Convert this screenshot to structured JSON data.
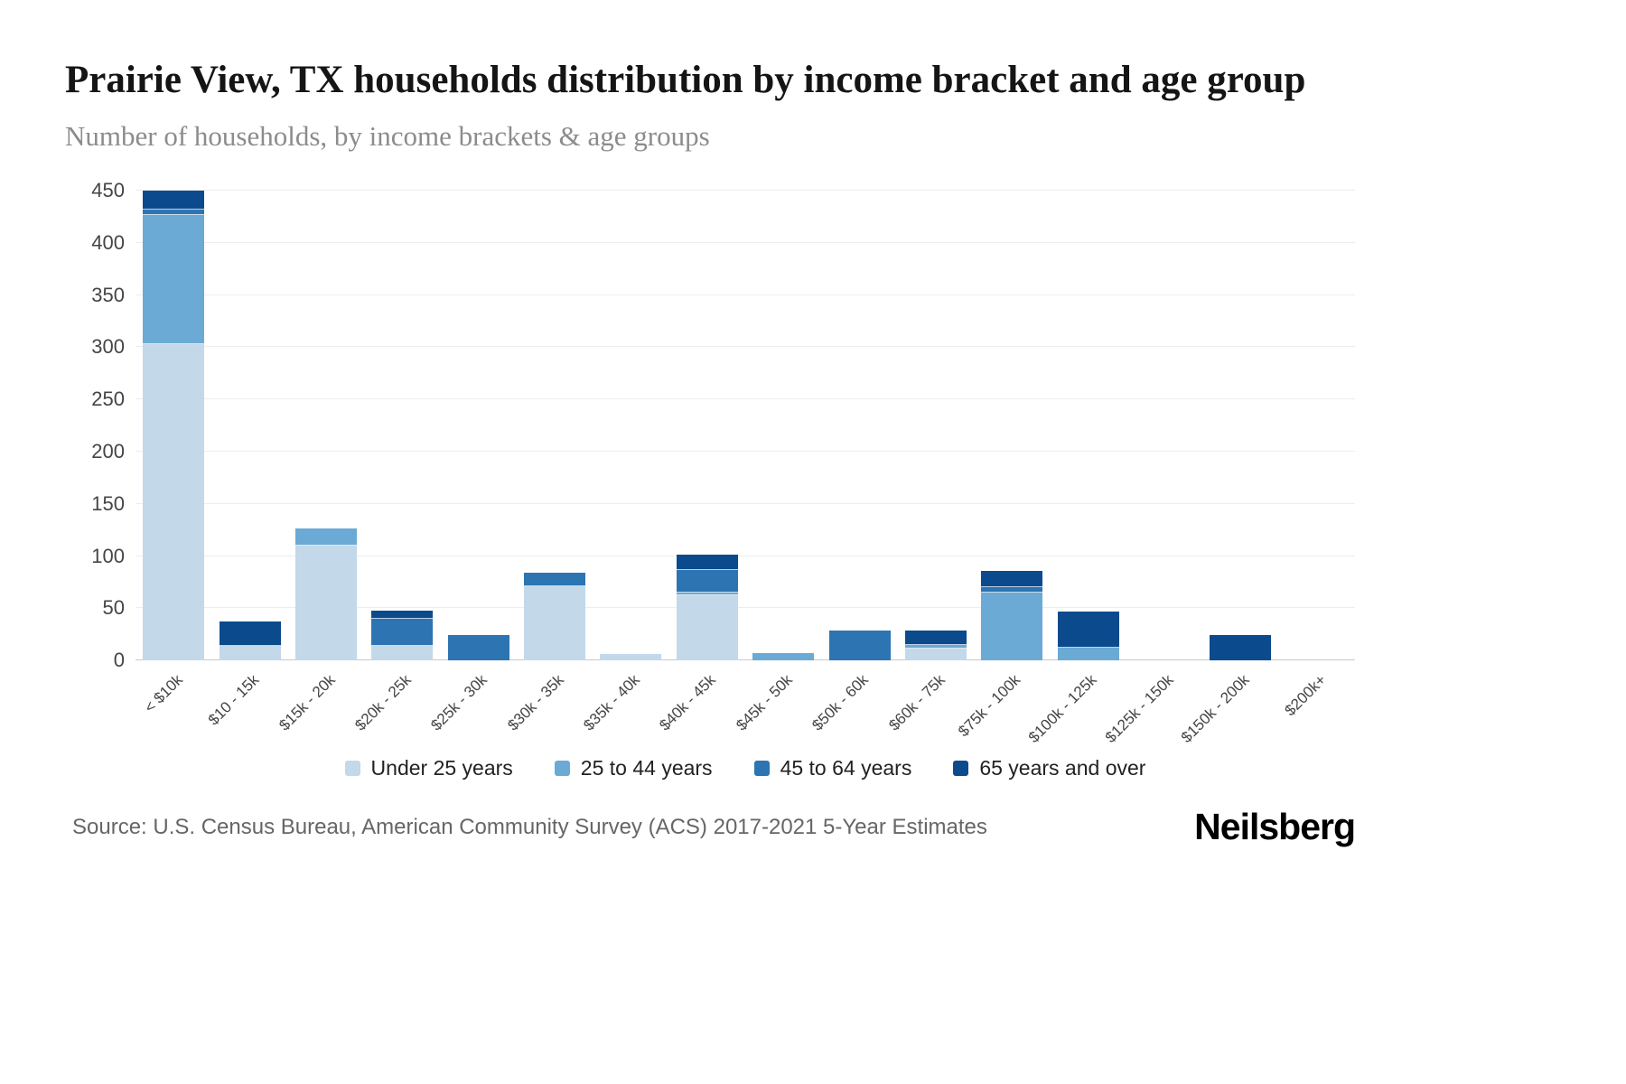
{
  "footer": {
    "source": "Source: U.S. Census Bureau, American Community Survey (ACS) 2017-2021 5-Year Estimates",
    "logo": "Neilsberg"
  },
  "chart_data": {
    "type": "bar",
    "stacked": true,
    "title": "Prairie View, TX households distribution by income bracket and age group",
    "subtitle": "Number of households, by income brackets & age groups",
    "xlabel": "",
    "ylabel": "",
    "ylim": [
      0,
      450
    ],
    "ytick_step": 50,
    "grid": true,
    "legend_position": "bottom",
    "categories": [
      "< $10k",
      "$10 - 15k",
      "$15k - 20k",
      "$20k - 25k",
      "$25k - 30k",
      "$30k - 35k",
      "$35k - 40k",
      "$40k - 45k",
      "$45k - 50k",
      "$50k - 60k",
      "$60k - 75k",
      "$75k - 100k",
      "$100k - 125k",
      "$125k - 150k",
      "$150k - 200k",
      "$200k+"
    ],
    "series": [
      {
        "name": "Under 25 years",
        "color": "#c3d8e9",
        "values": [
          303,
          14,
          110,
          14,
          0,
          71,
          6,
          62,
          0,
          0,
          11,
          0,
          0,
          0,
          0,
          0
        ]
      },
      {
        "name": "25 to 44 years",
        "color": "#6aaad4",
        "values": [
          124,
          0,
          16,
          0,
          0,
          0,
          0,
          3,
          7,
          0,
          4,
          65,
          12,
          0,
          0,
          0
        ]
      },
      {
        "name": "45 to 64 years",
        "color": "#2d74b3",
        "values": [
          5,
          0,
          0,
          26,
          24,
          13,
          0,
          22,
          0,
          29,
          0,
          5,
          0,
          0,
          0,
          0
        ]
      },
      {
        "name": "65 years and over",
        "color": "#0b4a8c",
        "values": [
          18,
          23,
          0,
          8,
          0,
          0,
          0,
          14,
          0,
          0,
          14,
          16,
          35,
          0,
          24,
          0
        ]
      }
    ]
  }
}
